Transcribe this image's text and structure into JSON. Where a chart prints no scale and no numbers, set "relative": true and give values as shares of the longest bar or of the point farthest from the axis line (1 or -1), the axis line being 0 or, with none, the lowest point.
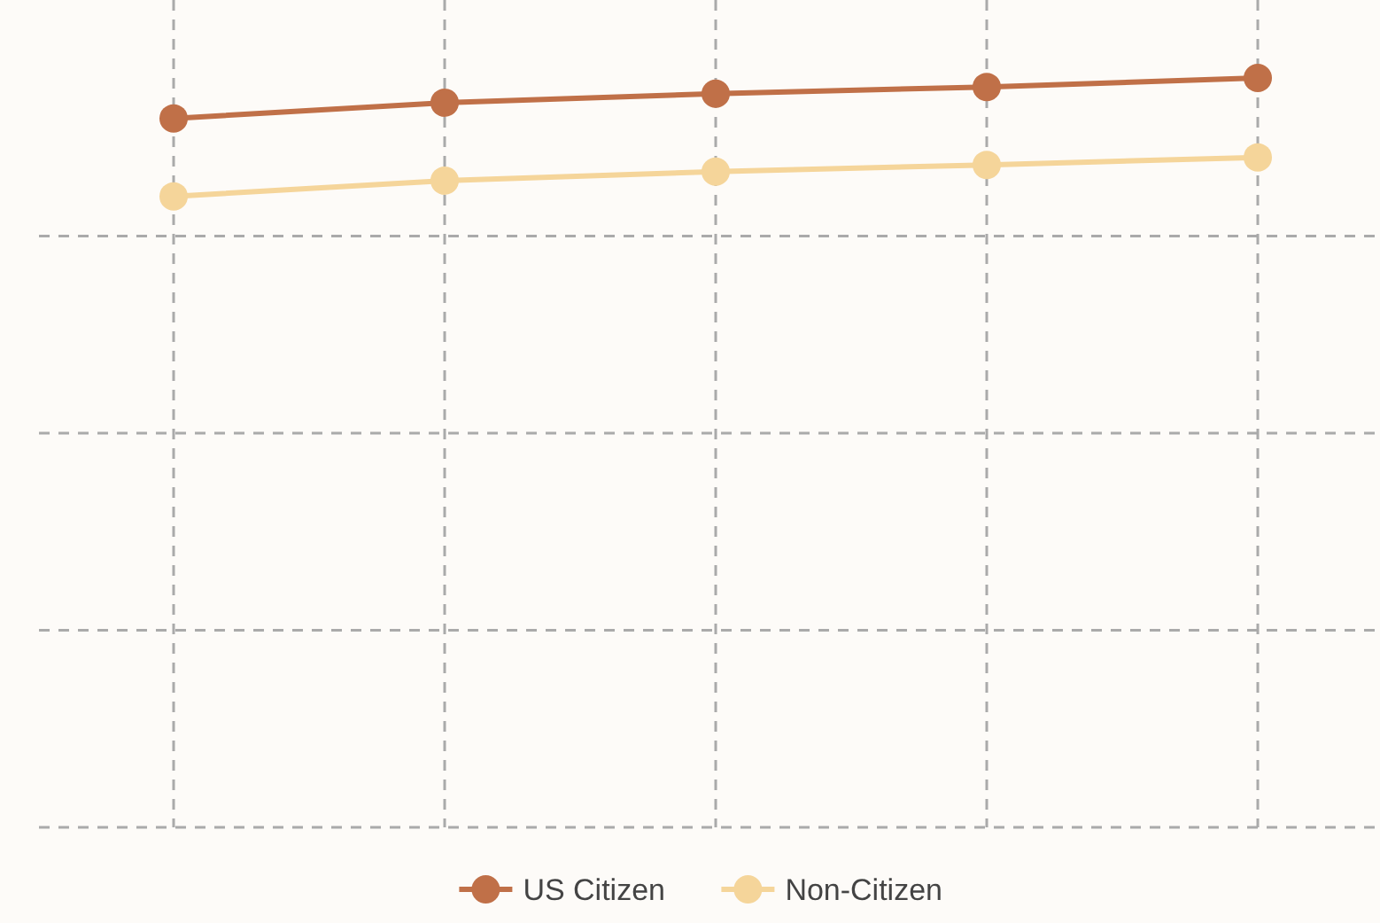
{
  "chart_data": {
    "type": "line",
    "relative": true,
    "categories": [
      null,
      null,
      null,
      null,
      null
    ],
    "series": [
      {
        "name": "US Citizen",
        "color": "#c07048",
        "values": [
          0.946,
          0.967,
          0.979,
          0.988,
          1
        ]
      },
      {
        "name": "Non-Citizen",
        "color": "#f5d59a",
        "values": [
          0.842,
          0.863,
          0.875,
          0.884,
          0.894
        ]
      }
    ],
    "grid": true,
    "legend": "bottom",
    "marker": "circle",
    "line_style": "solid"
  }
}
